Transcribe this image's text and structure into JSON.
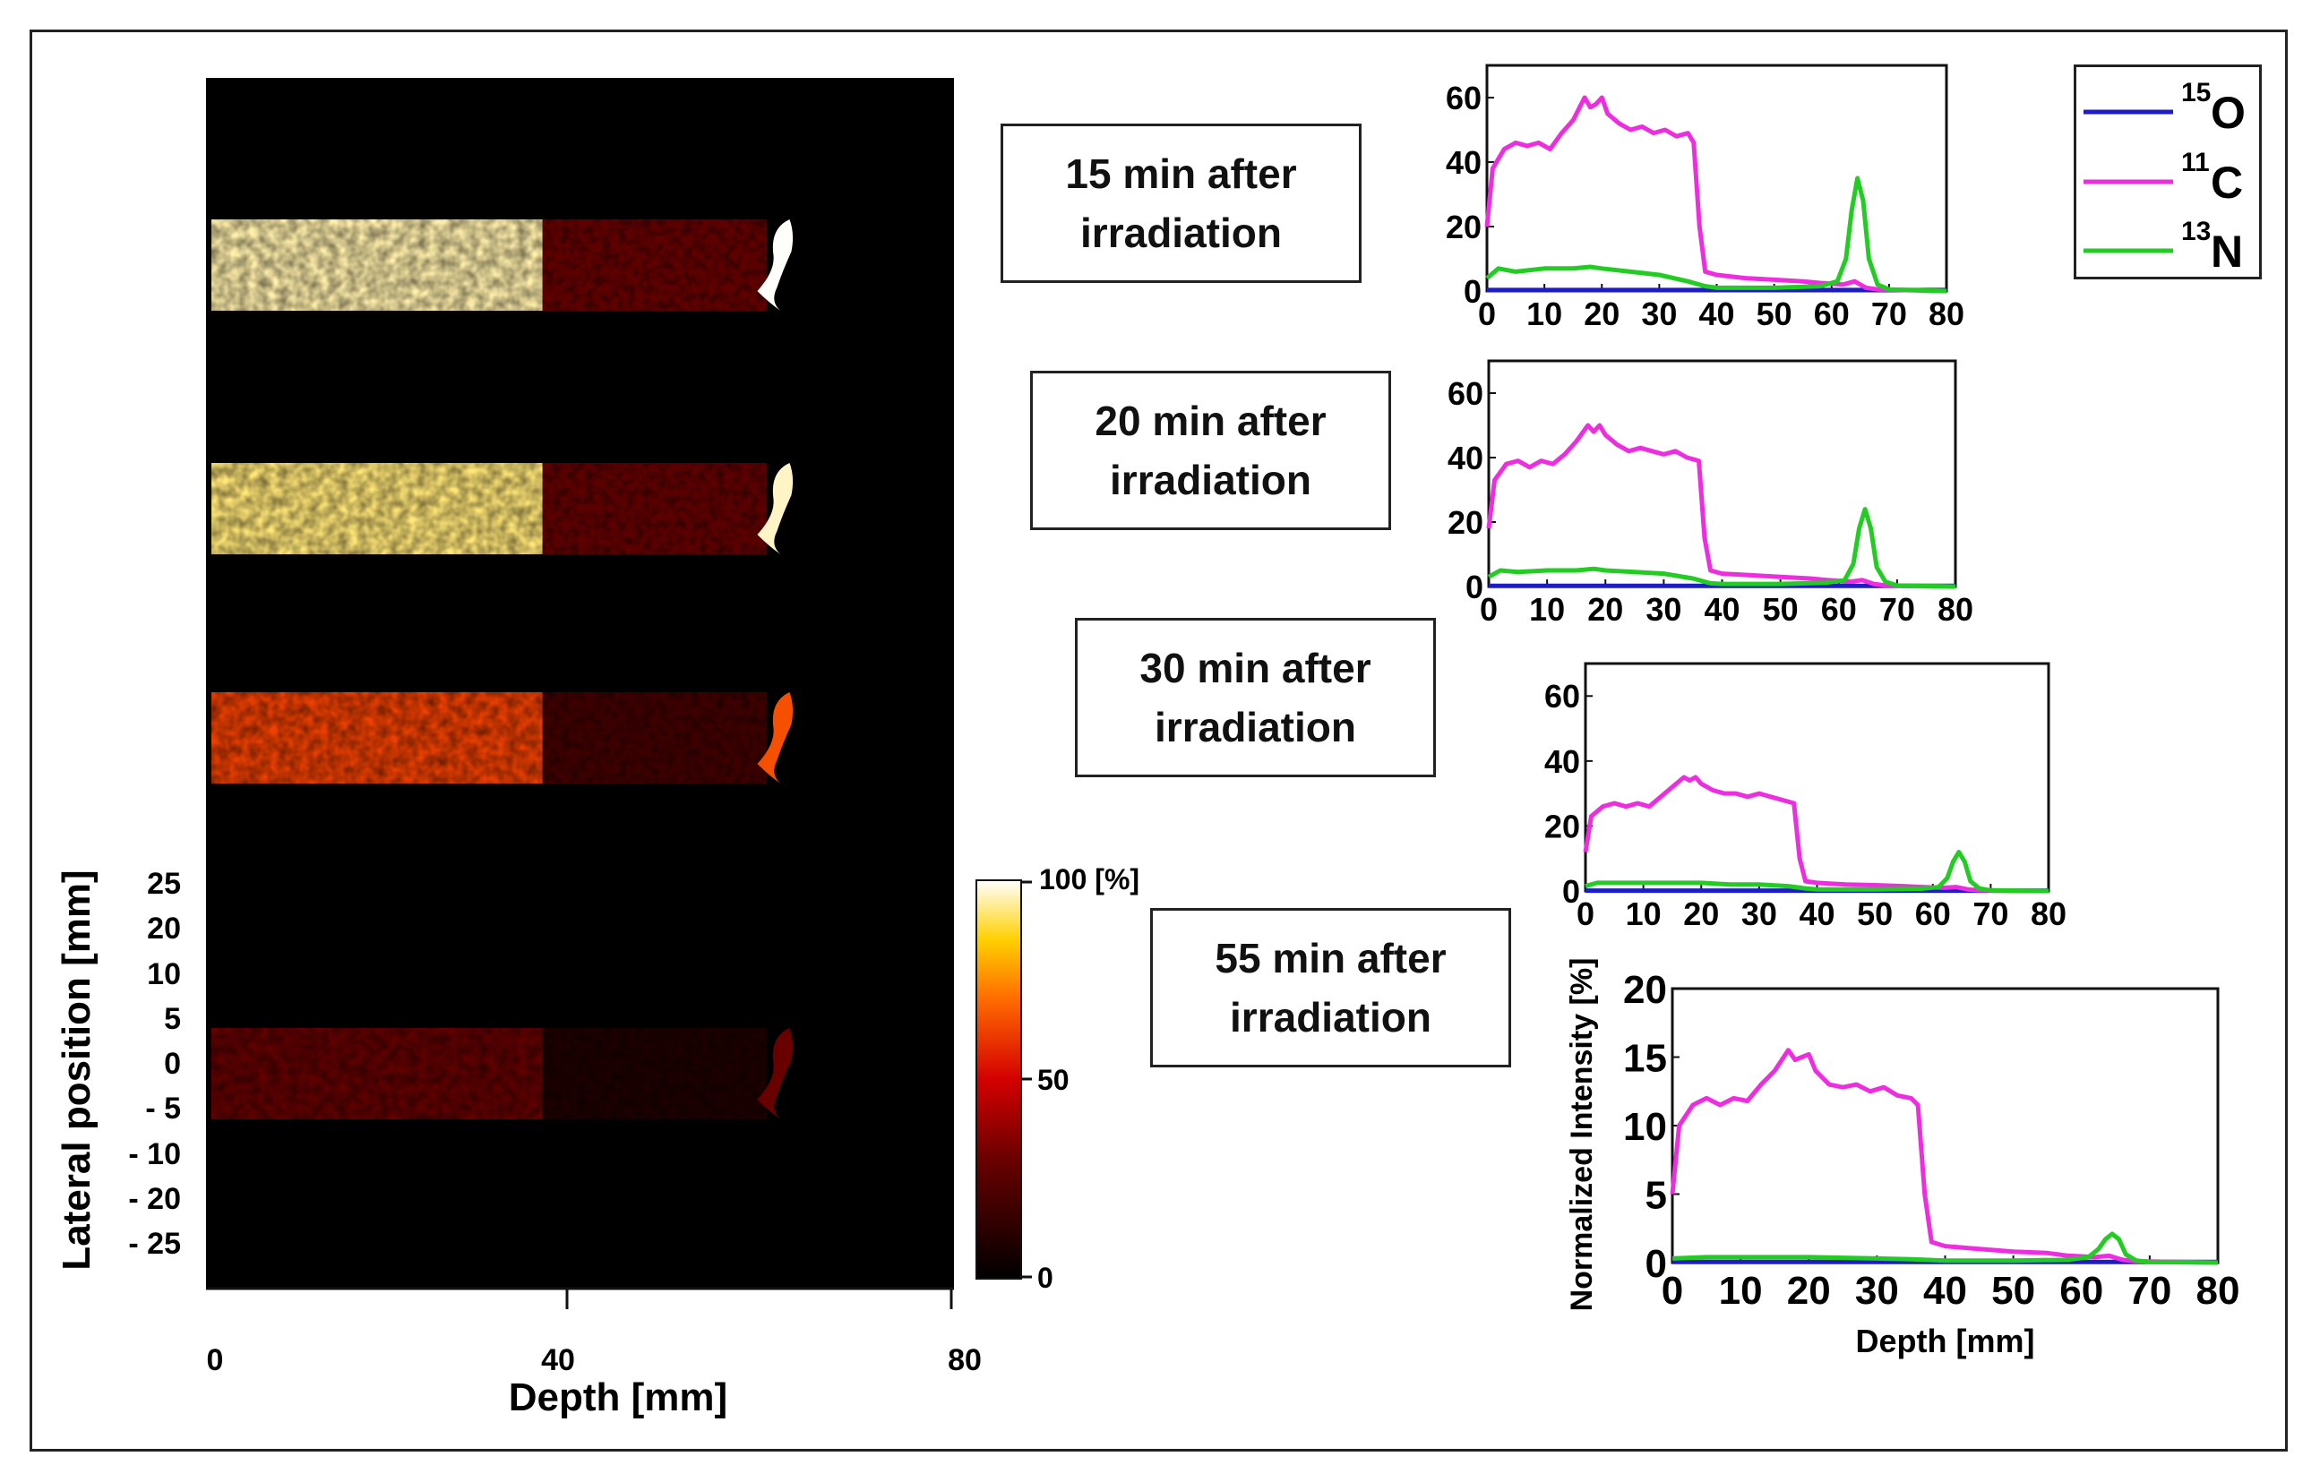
{
  "image_panel": {
    "x_axis_label": "Depth [mm]",
    "y_axis_label": "Lateral position [mm]",
    "x_tick_labels": [
      "0",
      "40",
      "80"
    ],
    "y_tick_labels": [
      "25",
      "20",
      "10",
      "5",
      "0",
      "- 5",
      "- 10",
      "- 20",
      "- 25"
    ],
    "colorbar": {
      "colormap": "hot",
      "tick_labels": [
        "100 [%]",
        "50",
        "0"
      ],
      "range": [
        0,
        100
      ]
    },
    "rows": [
      {
        "time_min": 15,
        "label_line1": "15 min after",
        "label_line2": "irradiation",
        "intensity_percent": 95
      },
      {
        "time_min": 20,
        "label_line1": "20 min after",
        "label_line2": "irradiation",
        "intensity_percent": 92
      },
      {
        "time_min": 30,
        "label_line1": "30 min after",
        "label_line2": "irradiation",
        "intensity_percent": 62
      },
      {
        "time_min": 55,
        "label_line1": "55 min after",
        "label_line2": "irradiation",
        "intensity_percent": 28
      }
    ]
  },
  "legend": {
    "entries": [
      {
        "isotope_mass": "15",
        "isotope_symbol": "O",
        "color": "#1c1cc8"
      },
      {
        "isotope_mass": "11",
        "isotope_symbol": "C",
        "color": "#ee2de0"
      },
      {
        "isotope_mass": "13",
        "isotope_symbol": "N",
        "color": "#22cc22"
      }
    ]
  },
  "chart_data": [
    {
      "type": "line",
      "title": "15 min after irradiation",
      "xlabel": "",
      "ylabel": "",
      "xlim": [
        0,
        80
      ],
      "ylim": [
        0,
        70
      ],
      "x_ticks": [
        0,
        10,
        20,
        30,
        40,
        50,
        60,
        70,
        80
      ],
      "y_ticks": [
        0,
        20,
        40,
        60
      ],
      "series": [
        {
          "name": "15O",
          "color": "#1c1cc8",
          "points": [
            [
              0,
              0.3
            ],
            [
              80,
              0.3
            ]
          ]
        },
        {
          "name": "11C",
          "color": "#ee2de0",
          "points": [
            [
              0,
              20
            ],
            [
              1,
              38
            ],
            [
              3,
              44
            ],
            [
              5,
              46
            ],
            [
              7,
              45
            ],
            [
              9,
              46
            ],
            [
              11,
              44
            ],
            [
              13,
              49
            ],
            [
              15,
              53
            ],
            [
              17,
              60
            ],
            [
              18,
              57
            ],
            [
              19,
              58
            ],
            [
              20,
              60
            ],
            [
              21,
              55
            ],
            [
              23,
              52
            ],
            [
              25,
              50
            ],
            [
              27,
              51
            ],
            [
              29,
              49
            ],
            [
              31,
              50
            ],
            [
              33,
              48
            ],
            [
              35,
              49
            ],
            [
              36,
              46
            ],
            [
              37,
              20
            ],
            [
              38,
              6
            ],
            [
              40,
              5
            ],
            [
              45,
              4
            ],
            [
              50,
              3.5
            ],
            [
              55,
              3
            ],
            [
              58,
              2.5
            ],
            [
              62,
              2
            ],
            [
              64,
              3
            ],
            [
              66,
              1
            ],
            [
              68,
              0.5
            ],
            [
              80,
              0
            ]
          ]
        },
        {
          "name": "13N",
          "color": "#22cc22",
          "points": [
            [
              0,
              4
            ],
            [
              2,
              7
            ],
            [
              5,
              6
            ],
            [
              10,
              7
            ],
            [
              15,
              7
            ],
            [
              18,
              7.5
            ],
            [
              20,
              7
            ],
            [
              25,
              6
            ],
            [
              30,
              5
            ],
            [
              35,
              3
            ],
            [
              38,
              1.5
            ],
            [
              40,
              1
            ],
            [
              50,
              1
            ],
            [
              58,
              1.5
            ],
            [
              61,
              3
            ],
            [
              62.5,
              10
            ],
            [
              63.5,
              25
            ],
            [
              64.5,
              35
            ],
            [
              65.5,
              28
            ],
            [
              66.5,
              10
            ],
            [
              68,
              2
            ],
            [
              70,
              0.5
            ],
            [
              80,
              0
            ]
          ]
        }
      ]
    },
    {
      "type": "line",
      "title": "20 min after irradiation",
      "xlabel": "",
      "ylabel": "",
      "xlim": [
        0,
        80
      ],
      "ylim": [
        0,
        70
      ],
      "x_ticks": [
        0,
        10,
        20,
        30,
        40,
        50,
        60,
        70,
        80
      ],
      "y_ticks": [
        0,
        20,
        40,
        60
      ],
      "series": [
        {
          "name": "15O",
          "color": "#1c1cc8",
          "points": [
            [
              0,
              0.2
            ],
            [
              80,
              0.2
            ]
          ]
        },
        {
          "name": "11C",
          "color": "#ee2de0",
          "points": [
            [
              0,
              18
            ],
            [
              1,
              33
            ],
            [
              3,
              38
            ],
            [
              5,
              39
            ],
            [
              7,
              37
            ],
            [
              9,
              39
            ],
            [
              11,
              38
            ],
            [
              13,
              41
            ],
            [
              15,
              45
            ],
            [
              17,
              50
            ],
            [
              18,
              48
            ],
            [
              19,
              50
            ],
            [
              20,
              47
            ],
            [
              22,
              44
            ],
            [
              24,
              42
            ],
            [
              26,
              43
            ],
            [
              28,
              42
            ],
            [
              30,
              41
            ],
            [
              32,
              42
            ],
            [
              34,
              40
            ],
            [
              36,
              39
            ],
            [
              37,
              15
            ],
            [
              38,
              5
            ],
            [
              40,
              4
            ],
            [
              45,
              3.5
            ],
            [
              50,
              3
            ],
            [
              55,
              2.5
            ],
            [
              58,
              2
            ],
            [
              62,
              1.5
            ],
            [
              64,
              2
            ],
            [
              66,
              0.8
            ],
            [
              68,
              0.3
            ],
            [
              80,
              0
            ]
          ]
        },
        {
          "name": "13N",
          "color": "#22cc22",
          "points": [
            [
              0,
              3
            ],
            [
              2,
              5
            ],
            [
              5,
              4.5
            ],
            [
              10,
              5
            ],
            [
              15,
              5
            ],
            [
              18,
              5.5
            ],
            [
              20,
              5
            ],
            [
              25,
              4.5
            ],
            [
              30,
              4
            ],
            [
              35,
              2.5
            ],
            [
              38,
              1
            ],
            [
              40,
              0.8
            ],
            [
              50,
              0.8
            ],
            [
              58,
              1.2
            ],
            [
              61,
              2
            ],
            [
              62.5,
              7
            ],
            [
              63.5,
              18
            ],
            [
              64.5,
              24
            ],
            [
              65.5,
              18
            ],
            [
              66.5,
              6
            ],
            [
              68,
              1.5
            ],
            [
              70,
              0.3
            ],
            [
              80,
              0
            ]
          ]
        }
      ]
    },
    {
      "type": "line",
      "title": "30 min after irradiation",
      "xlabel": "",
      "ylabel": "",
      "xlim": [
        0,
        80
      ],
      "ylim": [
        0,
        70
      ],
      "x_ticks": [
        0,
        10,
        20,
        30,
        40,
        50,
        60,
        70,
        80
      ],
      "y_ticks": [
        0,
        20,
        40,
        60
      ],
      "series": [
        {
          "name": "15O",
          "color": "#1c1cc8",
          "points": [
            [
              0,
              0.1
            ],
            [
              80,
              0.1
            ]
          ]
        },
        {
          "name": "11C",
          "color": "#ee2de0",
          "points": [
            [
              0,
              12
            ],
            [
              1,
              23
            ],
            [
              3,
              26
            ],
            [
              5,
              27
            ],
            [
              7,
              26
            ],
            [
              9,
              27
            ],
            [
              11,
              26
            ],
            [
              13,
              29
            ],
            [
              15,
              32
            ],
            [
              17,
              35
            ],
            [
              18,
              34
            ],
            [
              19,
              35
            ],
            [
              20,
              33
            ],
            [
              22,
              31
            ],
            [
              24,
              30
            ],
            [
              26,
              30
            ],
            [
              28,
              29
            ],
            [
              30,
              30
            ],
            [
              32,
              29
            ],
            [
              34,
              28
            ],
            [
              36,
              27
            ],
            [
              37,
              10
            ],
            [
              38,
              3
            ],
            [
              40,
              2.5
            ],
            [
              45,
              2
            ],
            [
              50,
              1.8
            ],
            [
              55,
              1.5
            ],
            [
              58,
              1.2
            ],
            [
              62,
              1
            ],
            [
              64,
              1.2
            ],
            [
              66,
              0.5
            ],
            [
              68,
              0.2
            ],
            [
              80,
              0
            ]
          ]
        },
        {
          "name": "13N",
          "color": "#22cc22",
          "points": [
            [
              0,
              1.5
            ],
            [
              2,
              2.5
            ],
            [
              5,
              2.5
            ],
            [
              10,
              2.5
            ],
            [
              15,
              2.5
            ],
            [
              20,
              2.5
            ],
            [
              25,
              2
            ],
            [
              30,
              2
            ],
            [
              35,
              1.5
            ],
            [
              38,
              0.8
            ],
            [
              40,
              0.5
            ],
            [
              50,
              0.5
            ],
            [
              58,
              0.7
            ],
            [
              61,
              1.2
            ],
            [
              62.5,
              4
            ],
            [
              63.5,
              9
            ],
            [
              64.5,
              12
            ],
            [
              65.5,
              9
            ],
            [
              66.5,
              3
            ],
            [
              68,
              0.8
            ],
            [
              70,
              0.2
            ],
            [
              80,
              0
            ]
          ]
        }
      ]
    },
    {
      "type": "line",
      "title": "55 min after irradiation",
      "xlabel": "Depth [mm]",
      "ylabel": "Normalized Intensity [%]",
      "xlim": [
        0,
        80
      ],
      "ylim": [
        0,
        20
      ],
      "x_ticks": [
        0,
        10,
        20,
        30,
        40,
        50,
        60,
        70,
        80
      ],
      "y_ticks": [
        0,
        5,
        10,
        15,
        20
      ],
      "series": [
        {
          "name": "15O",
          "color": "#1c1cc8",
          "points": [
            [
              0,
              0.05
            ],
            [
              80,
              0.05
            ]
          ]
        },
        {
          "name": "11C",
          "color": "#ee2de0",
          "points": [
            [
              0,
              5
            ],
            [
              1,
              10
            ],
            [
              3,
              11.5
            ],
            [
              5,
              12
            ],
            [
              7,
              11.5
            ],
            [
              9,
              12
            ],
            [
              11,
              11.8
            ],
            [
              13,
              13
            ],
            [
              15,
              14
            ],
            [
              17,
              15.5
            ],
            [
              18,
              14.8
            ],
            [
              19,
              15
            ],
            [
              20,
              15.2
            ],
            [
              21,
              14
            ],
            [
              23,
              13
            ],
            [
              25,
              12.8
            ],
            [
              27,
              13
            ],
            [
              29,
              12.5
            ],
            [
              31,
              12.8
            ],
            [
              33,
              12.2
            ],
            [
              35,
              12
            ],
            [
              36,
              11.5
            ],
            [
              37,
              5
            ],
            [
              38,
              1.5
            ],
            [
              40,
              1.2
            ],
            [
              45,
              1
            ],
            [
              50,
              0.8
            ],
            [
              55,
              0.7
            ],
            [
              58,
              0.5
            ],
            [
              62,
              0.4
            ],
            [
              64,
              0.5
            ],
            [
              66,
              0.2
            ],
            [
              68,
              0.1
            ],
            [
              80,
              0
            ]
          ]
        },
        {
          "name": "13N",
          "color": "#22cc22",
          "points": [
            [
              0,
              0.3
            ],
            [
              5,
              0.4
            ],
            [
              10,
              0.4
            ],
            [
              15,
              0.4
            ],
            [
              20,
              0.4
            ],
            [
              25,
              0.35
            ],
            [
              30,
              0.3
            ],
            [
              35,
              0.25
            ],
            [
              40,
              0.15
            ],
            [
              50,
              0.15
            ],
            [
              58,
              0.2
            ],
            [
              61,
              0.4
            ],
            [
              62.5,
              1
            ],
            [
              63.5,
              1.7
            ],
            [
              64.5,
              2.1
            ],
            [
              65.5,
              1.7
            ],
            [
              66.5,
              0.6
            ],
            [
              68,
              0.15
            ],
            [
              70,
              0.05
            ],
            [
              80,
              0
            ]
          ]
        }
      ]
    }
  ]
}
